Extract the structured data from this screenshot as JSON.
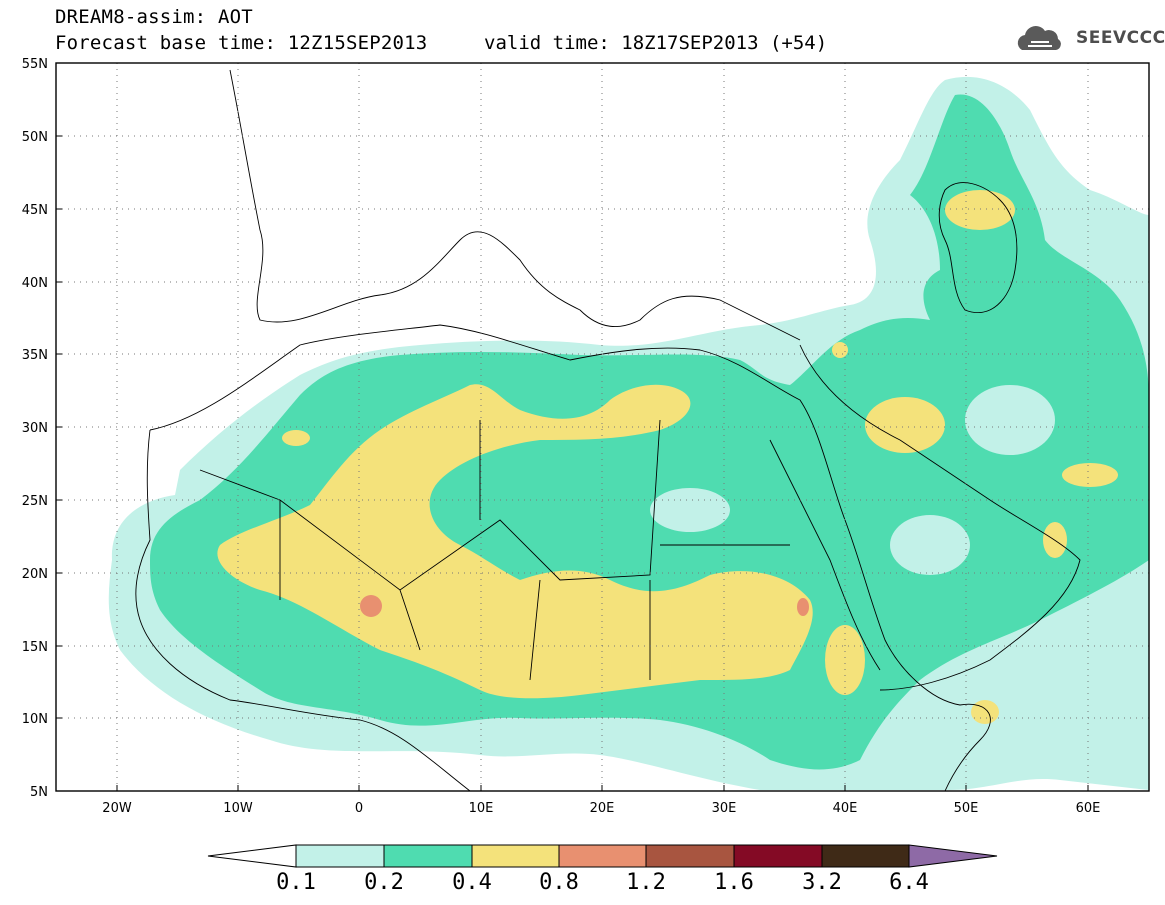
{
  "title": {
    "line1": "DREAM8-assim: AOT",
    "line2": "Forecast base time: 12Z15SEP2013",
    "valid": "valid time: 18Z17SEP2013 (+54)"
  },
  "logo": {
    "text": "SEEVCCC",
    "icon": "cloud-icon"
  },
  "map": {
    "lon_range": [
      -25,
      65
    ],
    "lat_range": [
      5,
      55
    ],
    "lat_ticks": [
      "55N",
      "50N",
      "45N",
      "40N",
      "35N",
      "30N",
      "25N",
      "20N",
      "15N",
      "10N",
      "5N"
    ],
    "lon_ticks": [
      "20W",
      "10W",
      "0",
      "10E",
      "20E",
      "30E",
      "40E",
      "50E",
      "60E"
    ],
    "grid": "dotted"
  },
  "colorbar": {
    "levels": [
      "0.1",
      "0.2",
      "0.4",
      "0.8",
      "1.2",
      "1.6",
      "3.2",
      "6.4"
    ],
    "colors": [
      "#ffffff",
      "#c2f1e8",
      "#4fdcb0",
      "#f4e27b",
      "#e89070",
      "#a85540",
      "#840a25",
      "#3f2a17",
      "#8e6aa6"
    ]
  }
}
